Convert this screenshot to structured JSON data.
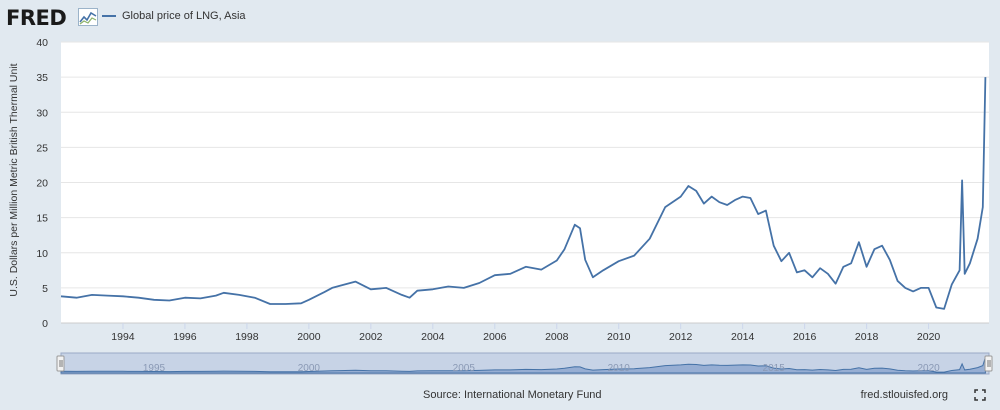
{
  "header": {
    "logo_text": "FRED",
    "legend_label": "Global price of LNG, Asia",
    "series_color": "#4572a7"
  },
  "footer": {
    "source": "Source: International Monetary Fund",
    "site": "fred.stlouisfed.org"
  },
  "icons": {
    "logo_mark": "fred-line-graph-icon",
    "expand": "fullscreen-icon"
  },
  "chart_data": {
    "type": "line",
    "title": "",
    "xlabel": "",
    "ylabel": "U.S. Dollars per Million Metric British Thermal Unit",
    "ylim": [
      0,
      40
    ],
    "yticks": [
      "0",
      "5",
      "10",
      "15",
      "20",
      "25",
      "30",
      "35",
      "40"
    ],
    "xticks": [
      "1994",
      "1996",
      "1998",
      "2000",
      "2002",
      "2004",
      "2006",
      "2008",
      "2010",
      "2012",
      "2014",
      "2016",
      "2018",
      "2020"
    ],
    "navigator_ticks": [
      "1995",
      "2000",
      "2005",
      "2010",
      "2015",
      "2020"
    ],
    "grid": "horizontal",
    "series": [
      {
        "name": "Global price of LNG, Asia",
        "x": [
          "1992-01",
          "1992-07",
          "1993-01",
          "1993-07",
          "1994-01",
          "1994-07",
          "1995-01",
          "1995-07",
          "1996-01",
          "1996-07",
          "1997-01",
          "1997-04",
          "1997-10",
          "1998-04",
          "1998-10",
          "1999-04",
          "1999-10",
          "2000-01",
          "2000-07",
          "2000-10",
          "2001-01",
          "2001-07",
          "2002-01",
          "2002-07",
          "2003-01",
          "2003-04",
          "2003-07",
          "2004-01",
          "2004-07",
          "2005-01",
          "2005-07",
          "2006-01",
          "2006-07",
          "2007-01",
          "2007-07",
          "2008-01",
          "2008-04",
          "2008-08",
          "2008-10",
          "2008-12",
          "2009-03",
          "2009-07",
          "2010-01",
          "2010-07",
          "2011-01",
          "2011-07",
          "2012-01",
          "2012-04",
          "2012-07",
          "2012-10",
          "2013-01",
          "2013-04",
          "2013-07",
          "2013-10",
          "2014-01",
          "2014-04",
          "2014-07",
          "2014-10",
          "2015-01",
          "2015-04",
          "2015-07",
          "2015-10",
          "2016-01",
          "2016-04",
          "2016-07",
          "2016-10",
          "2017-01",
          "2017-04",
          "2017-07",
          "2017-10",
          "2018-01",
          "2018-04",
          "2018-07",
          "2018-10",
          "2019-01",
          "2019-04",
          "2019-07",
          "2019-10",
          "2020-01",
          "2020-04",
          "2020-07",
          "2020-10",
          "2021-01",
          "2021-02",
          "2021-03",
          "2021-05",
          "2021-08",
          "2021-10",
          "2021-11"
        ],
        "values": [
          3.8,
          3.6,
          4.0,
          3.9,
          3.8,
          3.6,
          3.3,
          3.2,
          3.6,
          3.5,
          3.9,
          4.3,
          4.0,
          3.6,
          2.7,
          2.7,
          2.8,
          3.3,
          4.4,
          5.0,
          5.3,
          5.9,
          4.8,
          5.0,
          4.0,
          3.6,
          4.6,
          4.8,
          5.2,
          5.0,
          5.7,
          6.8,
          7.0,
          8.0,
          7.6,
          8.9,
          10.5,
          14.0,
          13.5,
          9.0,
          6.5,
          7.5,
          8.8,
          9.6,
          12.0,
          16.5,
          18.0,
          19.5,
          18.8,
          17.0,
          18.0,
          17.2,
          16.8,
          17.5,
          18.0,
          17.8,
          15.5,
          16.0,
          11.0,
          8.8,
          10.0,
          7.2,
          7.5,
          6.5,
          7.8,
          7.0,
          5.6,
          8.0,
          8.5,
          11.5,
          8.0,
          10.5,
          11.0,
          9.0,
          6.0,
          5.0,
          4.5,
          5.0,
          5.0,
          2.2,
          2.0,
          5.5,
          7.5,
          20.3,
          7.0,
          8.5,
          12.0,
          16.5,
          35.0
        ]
      }
    ]
  }
}
